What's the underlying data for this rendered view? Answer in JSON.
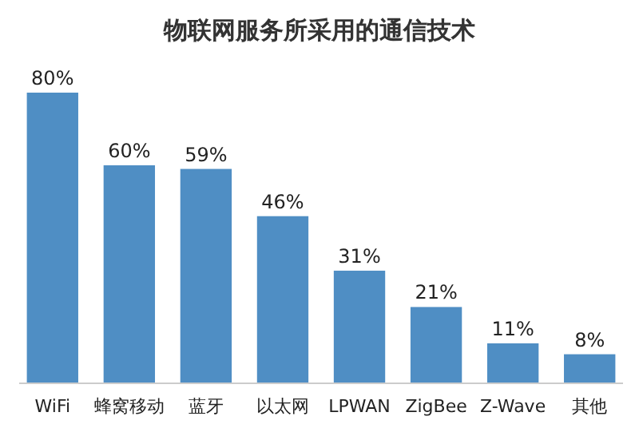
{
  "chart_data": {
    "type": "bar",
    "title": "物联网服务所采用的通信技术",
    "categories": [
      "WiFi",
      "蜂窝移动",
      "蓝牙",
      "以太网",
      "LPWAN",
      "ZigBee",
      "Z-Wave",
      "其他"
    ],
    "values": [
      80,
      60,
      59,
      46,
      31,
      21,
      11,
      8
    ],
    "value_labels": [
      "80%",
      "60%",
      "59%",
      "46%",
      "31%",
      "21%",
      "11%",
      "8%"
    ],
    "color": "#4f8ec4"
  }
}
